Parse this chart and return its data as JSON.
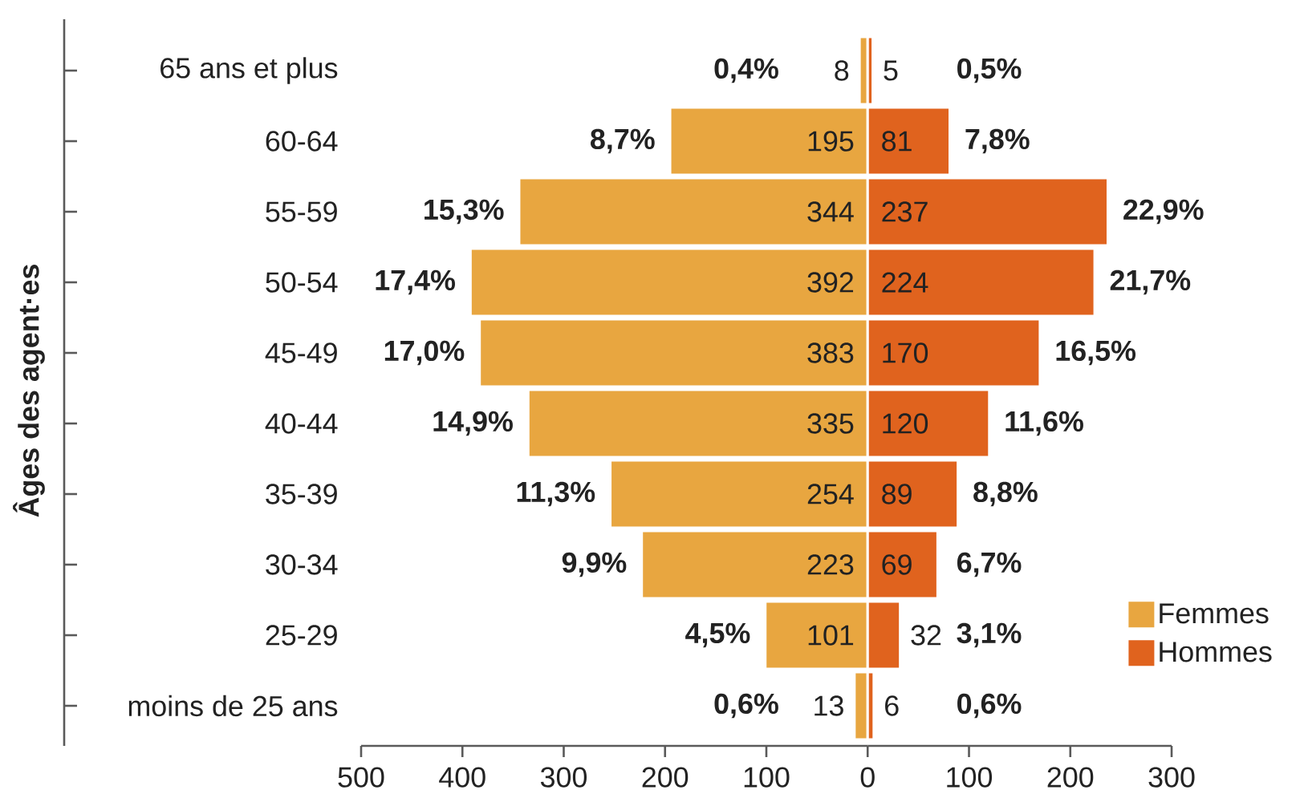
{
  "chart_data": [
    {
      "type": "bar",
      "orientation": "horizontal",
      "ylabel": "Âges des agent·es",
      "categories": [
        "65 ans et plus",
        "60-64",
        "55-59",
        "50-54",
        "45-49",
        "40-44",
        "35-39",
        "30-34",
        "25-29",
        "moins de 25 ans"
      ],
      "series": [
        {
          "name": "Femmes",
          "color": "#e8a640",
          "values": [
            8,
            195,
            344,
            392,
            383,
            335,
            254,
            223,
            101,
            13
          ],
          "value_labels": [
            "8",
            "195",
            "344",
            "392",
            "383",
            "335",
            "254",
            "223",
            "101",
            "13"
          ]
        }
      ],
      "xlim": [
        500,
        0
      ],
      "xticks": [
        500,
        400,
        300,
        200,
        100,
        0
      ],
      "legend": "right",
      "annotations": [
        {
          "text": "0,4%",
          "x": 8,
          "y": "65 ans et plus"
        },
        {
          "text": "8,7%",
          "x": 195,
          "y": "60-64"
        },
        {
          "text": "15,3%",
          "x": 344,
          "y": "55-59"
        },
        {
          "text": "17,4%",
          "x": 392,
          "y": "50-54"
        },
        {
          "text": "17,0%",
          "x": 383,
          "y": "45-49"
        },
        {
          "text": "14,9%",
          "x": 335,
          "y": "40-44"
        },
        {
          "text": "11,3%",
          "x": 254,
          "y": "35-39"
        },
        {
          "text": "9,9%",
          "x": 223,
          "y": "30-34"
        },
        {
          "text": "4,5%",
          "x": 101,
          "y": "25-29"
        },
        {
          "text": "0,6%",
          "x": 13,
          "y": "moins de 25 ans"
        }
      ]
    },
    {
      "type": "bar",
      "orientation": "horizontal",
      "categories": [
        "65 ans et plus",
        "60-64",
        "55-59",
        "50-54",
        "45-49",
        "40-44",
        "35-39",
        "30-34",
        "25-29",
        "moins de 25 ans"
      ],
      "series": [
        {
          "name": "Hommes",
          "color": "#e0631e",
          "values": [
            5,
            81,
            237,
            224,
            170,
            120,
            89,
            69,
            32,
            6
          ],
          "value_labels": [
            "5",
            "81",
            "237",
            "224",
            "170",
            "120",
            "89",
            "69",
            "32",
            "6"
          ]
        }
      ],
      "xlim": [
        0,
        300
      ],
      "xticks": [
        100,
        200,
        300
      ],
      "tick_labels": "x",
      "legend": "bottom right",
      "annotations": [
        {
          "text": "0,5%",
          "x": 5,
          "y": "65 ans et plus"
        },
        {
          "text": "7,8%",
          "x": 81,
          "y": "60-64"
        },
        {
          "text": "22,9%",
          "x": 237,
          "y": "55-59"
        },
        {
          "text": "21,7%",
          "x": 224,
          "y": "50-54"
        },
        {
          "text": "16,5%",
          "x": 170,
          "y": "45-49"
        },
        {
          "text": "11,6%",
          "x": 120,
          "y": "40-44"
        },
        {
          "text": "8,8%",
          "x": 89,
          "y": "35-39"
        },
        {
          "text": "6,7%",
          "x": 69,
          "y": "30-34"
        },
        {
          "text": "3,1%",
          "x": 32,
          "y": "25-29"
        },
        {
          "text": "0,6%",
          "x": 6,
          "y": "moins de 25 ans"
        }
      ]
    }
  ]
}
